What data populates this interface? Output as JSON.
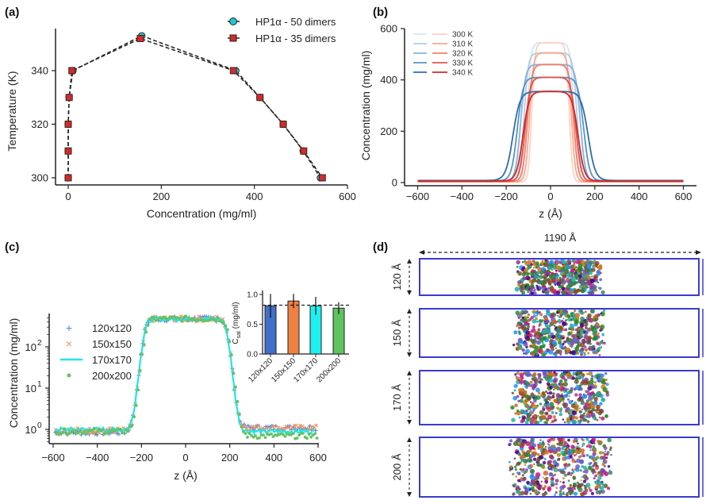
{
  "chart_data": [
    {
      "panel": "(a)",
      "type": "line",
      "title": "",
      "xlabel": "Concentration (mg/ml)",
      "ylabel": "Temperature (K)",
      "xlim": [
        -20,
        600
      ],
      "ylim": [
        297,
        356
      ],
      "xticks": [
        0,
        200,
        400,
        600
      ],
      "yticks": [
        300,
        320,
        340
      ],
      "xtick_labels": [
        "0",
        "200",
        "400",
        "600"
      ],
      "ytick_labels": [
        "300",
        "320",
        "340"
      ],
      "legend_position": "top-right",
      "series": [
        {
          "name": "HP1α - 50 dimers",
          "marker": "circle",
          "color": "#1ec8d0",
          "points": [
            [
              0,
              300
            ],
            [
              0,
              310
            ],
            [
              0,
              320
            ],
            [
              2,
              330
            ],
            [
              10,
              340
            ],
            [
              158,
              353
            ],
            [
              360,
              340
            ],
            [
              412,
              330
            ],
            [
              462,
              320
            ],
            [
              505,
              310
            ],
            [
              542,
              300
            ]
          ]
        },
        {
          "name": "HP1α - 35 dimers",
          "marker": "square",
          "color": "#d42a2a",
          "points": [
            [
              0,
              300
            ],
            [
              0,
              310
            ],
            [
              0,
              320
            ],
            [
              2,
              330
            ],
            [
              8,
              340
            ],
            [
              155,
              352
            ],
            [
              355,
              340
            ],
            [
              412,
              330
            ],
            [
              462,
              320
            ],
            [
              506,
              310
            ],
            [
              546,
              300
            ]
          ]
        }
      ]
    },
    {
      "panel": "(b)",
      "type": "line",
      "xlabel": "z (Å)",
      "ylabel": "Concentration (mg/ml)",
      "xlim": [
        -660,
        660
      ],
      "ylim": [
        0,
        600
      ],
      "xticks": [
        -600,
        -400,
        -200,
        0,
        200,
        400,
        600
      ],
      "yticks": [
        0,
        200,
        400,
        600
      ],
      "xtick_labels": [
        "−600",
        "−400",
        "−200",
        "0",
        "200",
        "400",
        "600"
      ],
      "ytick_labels": [
        "0",
        "200",
        "400",
        "600"
      ],
      "legend_position": "top-left",
      "legend_labels": [
        "300 K",
        "310 K",
        "320 K",
        "330 K",
        "340 K"
      ],
      "series": [
        {
          "name": "300 K (blue)",
          "color": "#d6e4f2",
          "plateau": 545,
          "half_width": 105,
          "interface": 16,
          "baseline": 4
        },
        {
          "name": "310 K (blue)",
          "color": "#b3cde6",
          "plateau": 505,
          "half_width": 120,
          "interface": 19,
          "baseline": 5
        },
        {
          "name": "320 K (blue)",
          "color": "#86b2d8",
          "plateau": 460,
          "half_width": 135,
          "interface": 22,
          "baseline": 6
        },
        {
          "name": "330 K (blue)",
          "color": "#5792c4",
          "plateau": 410,
          "half_width": 150,
          "interface": 26,
          "baseline": 7
        },
        {
          "name": "340 K (blue)",
          "color": "#2f6eaa",
          "plateau": 355,
          "half_width": 170,
          "interface": 32,
          "baseline": 8
        },
        {
          "name": "300 K (red)",
          "color": "#fbd3c4",
          "plateau": 545,
          "half_width": 85,
          "interface": 14,
          "baseline": 2
        },
        {
          "name": "310 K (red)",
          "color": "#f7a98f",
          "plateau": 505,
          "half_width": 95,
          "interface": 17,
          "baseline": 3
        },
        {
          "name": "320 K (red)",
          "color": "#f0806a",
          "plateau": 460,
          "half_width": 105,
          "interface": 20,
          "baseline": 4
        },
        {
          "name": "330 K (red)",
          "color": "#e3524a",
          "plateau": 410,
          "half_width": 115,
          "interface": 23,
          "baseline": 5
        },
        {
          "name": "340 K (red)",
          "color": "#cc2a2a",
          "plateau": 355,
          "half_width": 125,
          "interface": 28,
          "baseline": 6
        }
      ]
    },
    {
      "panel": "(c)",
      "type": "scatter",
      "xlabel": "z (Å)",
      "ylabel": "Concentration (mg/ml)",
      "yscale": "log",
      "xlim": [
        -610,
        610
      ],
      "ylim": [
        0.4,
        700
      ],
      "xticks": [
        -600,
        -400,
        -200,
        0,
        200,
        400,
        600
      ],
      "xtick_labels": [
        "−600",
        "−400",
        "−200",
        "0",
        "200",
        "400",
        "600"
      ],
      "yticks": [
        1,
        10,
        100
      ],
      "ytick_labels": [
        "10",
        "10",
        "10"
      ],
      "ytick_exponents": [
        "0",
        "1",
        "2"
      ],
      "legend_position": "top-left",
      "series": [
        {
          "name": "120x120",
          "marker": "+",
          "color": "#5b7fcf",
          "plateau": 480,
          "half_width": 185,
          "interface": 18,
          "dilute_left": 0.85,
          "dilute_right": 1.1
        },
        {
          "name": "150x150",
          "marker": "x",
          "color": "#ef8e5c",
          "plateau": 480,
          "half_width": 185,
          "interface": 18,
          "dilute_left": 0.95,
          "dilute_right": 1.1
        },
        {
          "name": "170x170",
          "marker": "line",
          "color": "#22e5e8",
          "plateau": 480,
          "half_width": 185,
          "interface": 18,
          "dilute_left": 1.0,
          "dilute_right": 0.9
        },
        {
          "name": "200x200",
          "marker": "dot",
          "color": "#63c363",
          "plateau": 480,
          "half_width": 185,
          "interface": 18,
          "dilute_left": 0.9,
          "dilute_right": 0.7
        }
      ],
      "inset": {
        "type": "bar",
        "ylabel": "C_sat (mg/ml)",
        "ylabel_main": "C",
        "ylabel_sub": "sat",
        "ylabel_rest": " (mg/ml)",
        "ylim": [
          0,
          1.05
        ],
        "yticks": [
          0.0,
          0.5,
          1.0
        ],
        "ytick_labels": [
          "0.0",
          "0.5",
          "1.0"
        ],
        "categories": [
          "120x120",
          "150x150",
          "170x170",
          "200x200"
        ],
        "values": [
          0.81,
          0.89,
          0.81,
          0.77
        ],
        "errors": [
          0.2,
          0.12,
          0.15,
          0.1
        ],
        "colors": [
          "#3f6fc9",
          "#ef8144",
          "#1ef0f0",
          "#5fc35f"
        ],
        "reference_line": 0.82
      }
    }
  ],
  "panels": {
    "a": {
      "label": "(a)"
    },
    "b": {
      "label": "(b)"
    },
    "c": {
      "label": "(c)"
    },
    "d": {
      "label": "(d)",
      "width_label": "1190 Å",
      "boxes": [
        {
          "height_label": "120 Å"
        },
        {
          "height_label": "150 Å"
        },
        {
          "height_label": "170 Å"
        },
        {
          "height_label": "200 Å"
        }
      ],
      "box_color": "#3a3ad0"
    }
  }
}
